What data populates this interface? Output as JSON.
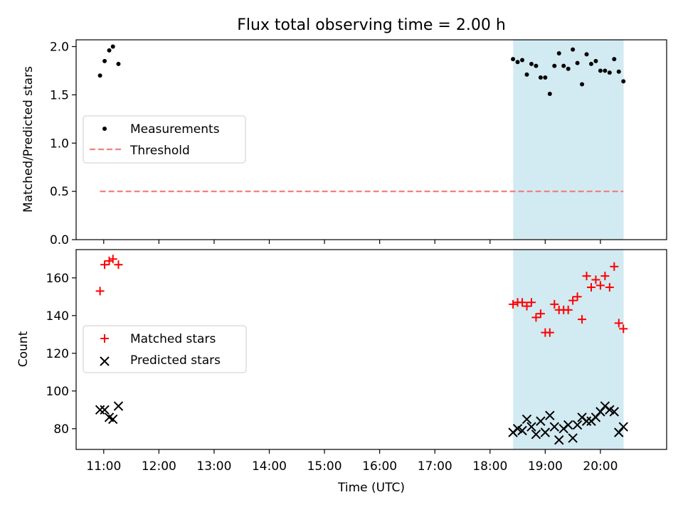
{
  "title": "Flux total observing time = 2.00 h",
  "xlabel": "Time (UTC)",
  "x_ticks": [
    "11:00",
    "12:00",
    "13:00",
    "14:00",
    "15:00",
    "16:00",
    "17:00",
    "18:00",
    "19:00",
    "20:00"
  ],
  "x_tick_hours": [
    11,
    12,
    13,
    14,
    15,
    16,
    17,
    18,
    19,
    20
  ],
  "x_range_hours": [
    10.5,
    21.2
  ],
  "shaded_region_hours": [
    18.42,
    20.42
  ],
  "colors": {
    "measurements": "#000000",
    "threshold": "#f08080",
    "matched": "#ff0000",
    "predicted": "#000000",
    "shade": "#add8e6"
  },
  "chart_data": [
    {
      "type": "scatter",
      "ylabel": "Matched/Predicted stars",
      "ylim": [
        0,
        2.07
      ],
      "y_ticks": [
        "0.0",
        "0.5",
        "1.0",
        "1.5",
        "2.0"
      ],
      "y_tick_values": [
        0,
        0.5,
        1.0,
        1.5,
        2.0
      ],
      "legend_position": "center-left",
      "series": [
        {
          "name": "Measurements",
          "marker": "dot",
          "x": [
            "10:56",
            "11:01",
            "11:06",
            "11:10",
            "11:16",
            "18:25",
            "18:30",
            "18:35",
            "18:40",
            "18:45",
            "18:50",
            "18:55",
            "19:00",
            "19:05",
            "19:10",
            "19:15",
            "19:20",
            "19:25",
            "19:30",
            "19:35",
            "19:40",
            "19:45",
            "19:50",
            "19:55",
            "20:00",
            "20:05",
            "20:10",
            "20:15",
            "20:20",
            "20:25"
          ],
          "y": [
            1.7,
            1.85,
            1.96,
            2.0,
            1.82,
            1.87,
            1.84,
            1.86,
            1.71,
            1.82,
            1.8,
            1.68,
            1.68,
            1.51,
            1.8,
            1.93,
            1.8,
            1.77,
            1.97,
            1.83,
            1.61,
            1.92,
            1.82,
            1.85,
            1.75,
            1.75,
            1.73,
            1.87,
            1.74,
            1.64
          ]
        },
        {
          "name": "Threshold",
          "style": "dashed",
          "x": [
            "10:56",
            "20:25"
          ],
          "y": [
            0.5,
            0.5
          ]
        }
      ]
    },
    {
      "type": "scatter",
      "ylabel": "Count",
      "ylim": [
        69,
        175
      ],
      "y_ticks": [
        "80",
        "100",
        "120",
        "140",
        "160"
      ],
      "y_tick_values": [
        80,
        100,
        120,
        140,
        160
      ],
      "legend_position": "center-left",
      "series": [
        {
          "name": "Matched stars",
          "marker": "plus",
          "x": [
            "10:56",
            "11:01",
            "11:06",
            "11:10",
            "11:16",
            "18:25",
            "18:30",
            "18:35",
            "18:40",
            "18:45",
            "18:50",
            "18:55",
            "19:00",
            "19:05",
            "19:10",
            "19:15",
            "19:20",
            "19:25",
            "19:30",
            "19:35",
            "19:40",
            "19:45",
            "19:50",
            "19:55",
            "20:00",
            "20:05",
            "20:10",
            "20:15",
            "20:20",
            "20:25"
          ],
          "y": [
            153,
            167,
            169,
            170,
            167,
            146,
            147,
            147,
            145,
            147,
            139,
            141,
            131,
            131,
            146,
            143,
            143,
            143,
            148,
            150,
            138,
            161,
            155,
            159,
            156,
            161,
            155,
            166,
            136,
            133
          ]
        },
        {
          "name": "Predicted stars",
          "marker": "x",
          "x": [
            "10:56",
            "11:01",
            "11:06",
            "11:10",
            "11:16",
            "18:25",
            "18:30",
            "18:35",
            "18:40",
            "18:45",
            "18:50",
            "18:55",
            "19:00",
            "19:05",
            "19:10",
            "19:15",
            "19:20",
            "19:25",
            "19:30",
            "19:35",
            "19:40",
            "19:45",
            "19:50",
            "19:55",
            "20:00",
            "20:05",
            "20:10",
            "20:15",
            "20:20",
            "20:25"
          ],
          "y": [
            90,
            90,
            86,
            85,
            92,
            78,
            80,
            79,
            85,
            81,
            77,
            84,
            78,
            87,
            81,
            74,
            80,
            82,
            75,
            82,
            86,
            84,
            84,
            86,
            89,
            92,
            90,
            89,
            78,
            81
          ]
        }
      ]
    }
  ]
}
